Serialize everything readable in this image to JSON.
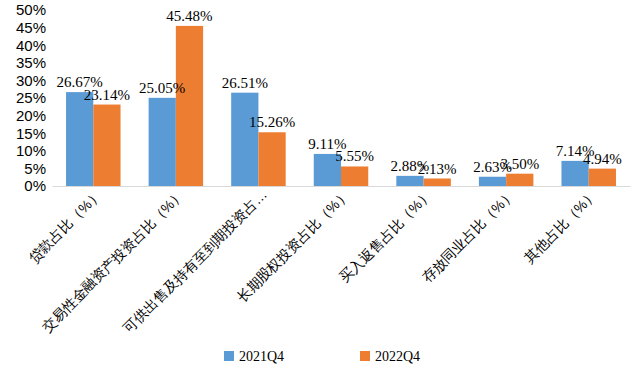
{
  "chart_data": {
    "type": "bar",
    "categories": [
      "贷款占比（%）",
      "交易性金融资产投资占比（%）",
      "可供出售及持有至到期投资占…",
      "长期股权投资占比（%）",
      "买入返售占比（%）",
      "存放同业占比（%）",
      "其他占比（%）"
    ],
    "series": [
      {
        "name": "2021Q4",
        "color": "#5b9bd5",
        "values": [
          26.67,
          25.05,
          26.51,
          9.11,
          2.88,
          2.63,
          7.14
        ],
        "value_labels": [
          "26.67%",
          "25.05%",
          "26.51%",
          "9.11%",
          "2.88%",
          "2.63%",
          "7.14%"
        ]
      },
      {
        "name": "2022Q4",
        "color": "#ed7d31",
        "values": [
          23.14,
          45.48,
          15.26,
          5.55,
          2.13,
          3.5,
          4.94
        ],
        "value_labels": [
          "23.14%",
          "45.48%",
          "15.26%",
          "5.55%",
          "2.13%",
          "3.50%",
          "4.94%"
        ]
      }
    ],
    "ylim": [
      0,
      50
    ],
    "yticks": [
      {
        "value": 0,
        "label": "0%"
      },
      {
        "value": 5,
        "label": "5%"
      },
      {
        "value": 10,
        "label": "10%"
      },
      {
        "value": 15,
        "label": "15%"
      },
      {
        "value": 20,
        "label": "20%"
      },
      {
        "value": 25,
        "label": "25%"
      },
      {
        "value": 30,
        "label": "30%"
      },
      {
        "value": 35,
        "label": "35%"
      },
      {
        "value": 40,
        "label": "40%"
      },
      {
        "value": 45,
        "label": "45%"
      },
      {
        "value": 50,
        "label": "50%"
      }
    ],
    "grid": false,
    "legend": "bottom",
    "data_labels": true
  }
}
